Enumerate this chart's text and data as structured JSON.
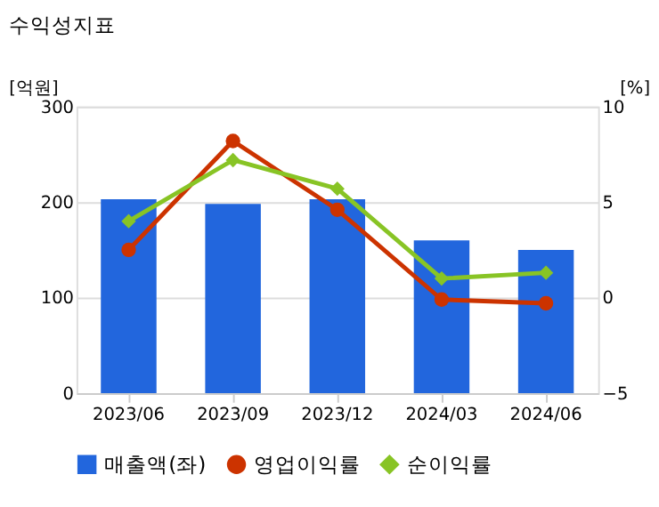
{
  "chart_data": {
    "type": "bar",
    "title": "수익성지표",
    "ylabel": "[억원]",
    "y2label": "[%]",
    "categories": [
      "2023/06",
      "2023/09",
      "2023/12",
      "2024/03",
      "2024/06"
    ],
    "series": [
      {
        "name": "매출액(좌)",
        "color": "#2266dd",
        "values": [
          203,
          198,
          203,
          160,
          150
        ]
      },
      {
        "name": "영업이익률",
        "type": "line",
        "axis": "y2",
        "marker": "circle",
        "color": "#cc3300",
        "values": [
          2.5,
          8.2,
          4.6,
          -0.1,
          -0.3
        ]
      },
      {
        "name": "순이익률",
        "type": "line",
        "axis": "y2",
        "marker": "diamond",
        "color": "#88c425",
        "values": [
          4.0,
          7.2,
          5.7,
          1.0,
          1.3
        ]
      }
    ],
    "ylim": [
      0,
      300
    ],
    "yticks": [
      0,
      100,
      200,
      300
    ],
    "y2lim": [
      -5,
      10
    ],
    "y2ticks": [
      -5,
      0,
      5,
      10
    ],
    "grid": "y",
    "legend": "bottom"
  }
}
